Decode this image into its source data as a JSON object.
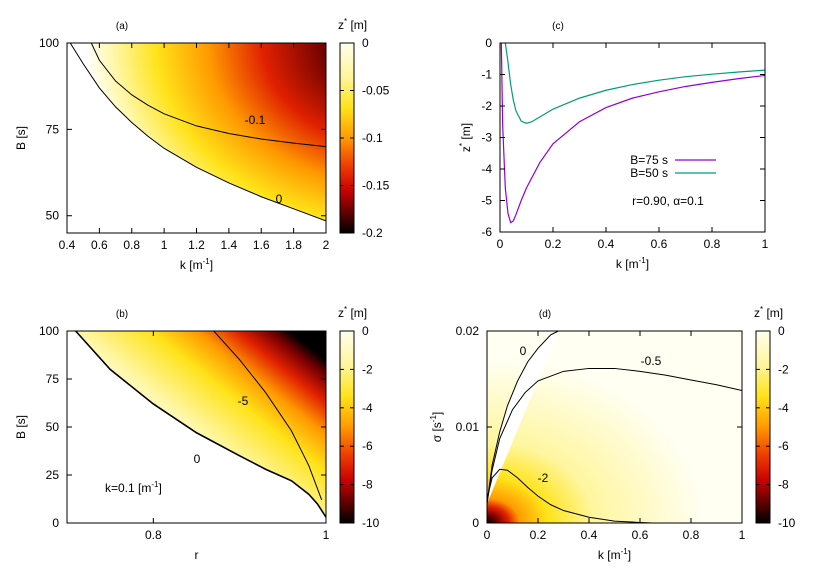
{
  "chart_data": [
    {
      "id": "a",
      "type": "heatmap",
      "panel_label": "(a)",
      "xlabel": "k [m",
      "xlabel_sup": "-1",
      "xlabel_end": "]",
      "ylabel": "B [s]",
      "xlim": [
        0.4,
        2.0
      ],
      "ylim": [
        45,
        100
      ],
      "xticks": [
        "0.4",
        "0.6",
        "0.8",
        "1",
        "1.2",
        "1.4",
        "1.6",
        "1.8",
        "2"
      ],
      "xtick_values": [
        0.4,
        0.6,
        0.8,
        1.0,
        1.2,
        1.4,
        1.6,
        1.8,
        2.0
      ],
      "yticks": [
        "50",
        "75",
        "100"
      ],
      "ytick_values": [
        50,
        75,
        100
      ],
      "colorbar": {
        "title": "z",
        "title_sup": "*",
        "title_end": " [m]",
        "ticks": [
          "0",
          "-0.05",
          "-0.1",
          "-0.15",
          "-0.2"
        ],
        "tick_values": [
          0,
          -0.05,
          -0.1,
          -0.15,
          -0.2
        ],
        "range": [
          -0.2,
          0
        ]
      },
      "contours": [
        {
          "label": "0",
          "x": [
            0.42,
            0.5,
            0.6,
            0.7,
            0.8,
            0.9,
            1.0,
            1.2,
            1.4,
            1.6,
            1.8,
            2.0
          ],
          "y": [
            100,
            94,
            87,
            81.5,
            77,
            73,
            69.5,
            64,
            59.5,
            55.5,
            52,
            48.5
          ]
        },
        {
          "label": "-0.1",
          "x": [
            0.55,
            0.6,
            0.7,
            0.8,
            0.9,
            1.0,
            1.2,
            1.4,
            1.6,
            1.8,
            2.0
          ],
          "y": [
            100,
            95,
            89,
            85,
            82,
            79.5,
            76,
            73.8,
            72.2,
            71,
            70
          ]
        }
      ]
    },
    {
      "id": "b",
      "type": "heatmap",
      "panel_label": "(b)",
      "xlabel": "r",
      "xlabel_sup": "",
      "xlabel_end": "",
      "ylabel": "B [s]",
      "xlim": [
        0.7,
        1.0
      ],
      "ylim": [
        0,
        100
      ],
      "xticks": [
        "0.8",
        "1"
      ],
      "xtick_values": [
        0.8,
        1.0
      ],
      "yticks": [
        "0",
        "25",
        "50",
        "75",
        "100"
      ],
      "ytick_values": [
        0,
        25,
        50,
        75,
        100
      ],
      "annotation": "k=0.1 [m",
      "annotation_sup": "-1",
      "annotation_end": "]",
      "colorbar": {
        "title": "z",
        "title_sup": "*",
        "title_end": " [m]",
        "ticks": [
          "0",
          "-2",
          "-4",
          "-6",
          "-8",
          "-10"
        ],
        "tick_values": [
          0,
          -2,
          -4,
          -6,
          -8,
          -10
        ],
        "range": [
          -10,
          0
        ]
      },
      "contours": [
        {
          "label": "0",
          "x": [
            0.71,
            0.75,
            0.8,
            0.85,
            0.9,
            0.93,
            0.96,
            0.98,
            0.99,
            1.0
          ],
          "y": [
            100,
            80,
            62,
            47,
            35,
            28,
            22,
            15,
            10,
            3
          ]
        },
        {
          "label": "-5",
          "x": [
            0.87,
            0.9,
            0.93,
            0.96,
            0.98,
            0.99,
            0.995
          ],
          "y": [
            100,
            85,
            68,
            48,
            30,
            18,
            12
          ]
        }
      ]
    },
    {
      "id": "c",
      "type": "line",
      "panel_label": "(c)",
      "xlabel": "k [m",
      "xlabel_sup": "-1",
      "xlabel_end": "]",
      "ylabel": "z",
      "ylabel_sup": "*",
      "ylabel_end": " [m]",
      "xlim": [
        0,
        1
      ],
      "ylim": [
        -6,
        0
      ],
      "xticks": [
        "0",
        "0.2",
        "0.4",
        "0.6",
        "0.8",
        "1"
      ],
      "xtick_values": [
        0,
        0.2,
        0.4,
        0.6,
        0.8,
        1
      ],
      "yticks": [
        "0",
        "-1",
        "-2",
        "-3",
        "-4",
        "-5",
        "-6"
      ],
      "ytick_values": [
        0,
        -1,
        -2,
        -3,
        -4,
        -5,
        -6
      ],
      "annotation": "r=0.90, α=0.1",
      "series": [
        {
          "name": "B=75 s",
          "color": "#9400d3",
          "x": [
            0.005,
            0.01,
            0.02,
            0.03,
            0.04,
            0.05,
            0.06,
            0.08,
            0.1,
            0.15,
            0.2,
            0.3,
            0.4,
            0.5,
            0.6,
            0.7,
            0.8,
            0.9,
            1.0
          ],
          "y": [
            0,
            -2.6,
            -4.6,
            -5.4,
            -5.7,
            -5.65,
            -5.45,
            -5.0,
            -4.6,
            -3.8,
            -3.2,
            -2.5,
            -2.05,
            -1.75,
            -1.55,
            -1.38,
            -1.25,
            -1.13,
            -1.03
          ]
        },
        {
          "name": "B=50 s",
          "color": "#009e73",
          "x": [
            0.02,
            0.03,
            0.04,
            0.05,
            0.06,
            0.08,
            0.1,
            0.12,
            0.15,
            0.2,
            0.3,
            0.4,
            0.5,
            0.6,
            0.7,
            0.8,
            0.9,
            1.0
          ],
          "y": [
            0,
            -0.6,
            -1.3,
            -1.8,
            -2.15,
            -2.48,
            -2.55,
            -2.5,
            -2.35,
            -2.1,
            -1.75,
            -1.5,
            -1.32,
            -1.18,
            -1.07,
            -0.99,
            -0.92,
            -0.86
          ]
        }
      ]
    },
    {
      "id": "d",
      "type": "heatmap",
      "panel_label": "(d)",
      "xlabel": "k [m",
      "xlabel_sup": "-1",
      "xlabel_end": "]",
      "ylabel": "σ [s",
      "ylabel_sup": "-1",
      "ylabel_end": "]",
      "xlim": [
        0,
        1
      ],
      "ylim": [
        0,
        0.02
      ],
      "xticks": [
        "0",
        "0.2",
        "0.4",
        "0.6",
        "0.8",
        "1"
      ],
      "xtick_values": [
        0,
        0.2,
        0.4,
        0.6,
        0.8,
        1
      ],
      "yticks": [
        "0",
        "0.01",
        "0.02"
      ],
      "ytick_values": [
        0,
        0.01,
        0.02
      ],
      "colorbar": {
        "title": "z",
        "title_sup": "*",
        "title_end": " [m]",
        "ticks": [
          "0",
          "-2",
          "-4",
          "-6",
          "-8",
          "-10"
        ],
        "tick_values": [
          0,
          -2,
          -4,
          -6,
          -8,
          -10
        ],
        "range": [
          -10,
          0
        ]
      },
      "contours": [
        {
          "label": "0",
          "x": [
            0.0,
            0.02,
            0.05,
            0.08,
            0.12,
            0.16,
            0.2,
            0.25,
            0.28
          ],
          "y": [
            0.002,
            0.006,
            0.0095,
            0.0122,
            0.0148,
            0.0168,
            0.0182,
            0.0196,
            0.02
          ]
        },
        {
          "label": "-0.5",
          "x": [
            0.0,
            0.02,
            0.05,
            0.1,
            0.15,
            0.2,
            0.3,
            0.4,
            0.5,
            0.6,
            0.7,
            0.8,
            0.9,
            1.0
          ],
          "y": [
            0.002,
            0.0055,
            0.0088,
            0.0118,
            0.0136,
            0.0148,
            0.0158,
            0.0161,
            0.0161,
            0.0158,
            0.0154,
            0.0149,
            0.0144,
            0.0138
          ]
        },
        {
          "label": "-2",
          "x": [
            0.0,
            0.02,
            0.05,
            0.08,
            0.12,
            0.16,
            0.2,
            0.25,
            0.3,
            0.4,
            0.5,
            0.6,
            0.65
          ],
          "y": [
            0.0025,
            0.0047,
            0.0056,
            0.0055,
            0.0047,
            0.0037,
            0.0028,
            0.0019,
            0.0013,
            0.0006,
            0.0002,
            5e-05,
            0.0
          ]
        }
      ]
    }
  ]
}
